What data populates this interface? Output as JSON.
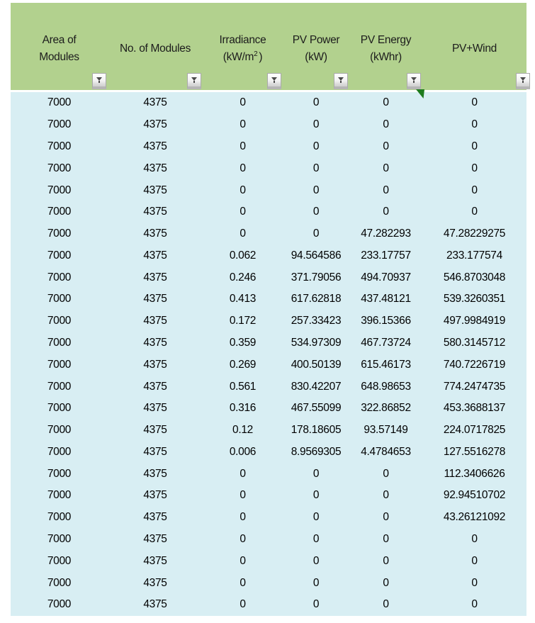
{
  "app": {
    "type": "spreadsheet-table",
    "header_bg": "#B2D18E",
    "data_bg": "#D8EEF3",
    "flag_color": "#1E7B1E",
    "text_color": "#000000",
    "filter_icon": "funnel"
  },
  "table": {
    "columns": [
      {
        "name": "area-of-modules",
        "line1": "Area of",
        "line2": "Modules"
      },
      {
        "name": "no-of-modules",
        "line1": "No. of Modules",
        "line2": ""
      },
      {
        "name": "irradiance",
        "line1": "Irradiance",
        "line2_pre": "(kW/m",
        "line2_sup": "2",
        "line2_post": ")"
      },
      {
        "name": "pv-power",
        "line1": "PV Power",
        "line2": "(kW)"
      },
      {
        "name": "pv-energy",
        "line1": "PV Energy",
        "line2": "(kWhr)"
      },
      {
        "name": "pv-plus-wind",
        "line1": "PV+Wind",
        "line2": ""
      }
    ],
    "rows": [
      [
        "7000",
        "4375",
        "0",
        "0",
        "0",
        "0"
      ],
      [
        "7000",
        "4375",
        "0",
        "0",
        "0",
        "0"
      ],
      [
        "7000",
        "4375",
        "0",
        "0",
        "0",
        "0"
      ],
      [
        "7000",
        "4375",
        "0",
        "0",
        "0",
        "0"
      ],
      [
        "7000",
        "4375",
        "0",
        "0",
        "0",
        "0"
      ],
      [
        "7000",
        "4375",
        "0",
        "0",
        "0",
        "0"
      ],
      [
        "7000",
        "4375",
        "0",
        "0",
        "47.282293",
        "47.28229275"
      ],
      [
        "7000",
        "4375",
        "0.062",
        "94.564586",
        "233.17757",
        "233.177574"
      ],
      [
        "7000",
        "4375",
        "0.246",
        "371.79056",
        "494.70937",
        "546.8703048"
      ],
      [
        "7000",
        "4375",
        "0.413",
        "617.62818",
        "437.48121",
        "539.3260351"
      ],
      [
        "7000",
        "4375",
        "0.172",
        "257.33423",
        "396.15366",
        "497.9984919"
      ],
      [
        "7000",
        "4375",
        "0.359",
        "534.97309",
        "467.73724",
        "580.3145712"
      ],
      [
        "7000",
        "4375",
        "0.269",
        "400.50139",
        "615.46173",
        "740.7226719"
      ],
      [
        "7000",
        "4375",
        "0.561",
        "830.42207",
        "648.98653",
        "774.2474735"
      ],
      [
        "7000",
        "4375",
        "0.316",
        "467.55099",
        "322.86852",
        "453.3688137"
      ],
      [
        "7000",
        "4375",
        "0.12",
        "178.18605",
        "93.57149",
        "224.0717825"
      ],
      [
        "7000",
        "4375",
        "0.006",
        "8.9569305",
        "4.4784653",
        "127.5516278"
      ],
      [
        "7000",
        "4375",
        "0",
        "0",
        "0",
        "112.3406626"
      ],
      [
        "7000",
        "4375",
        "0",
        "0",
        "0",
        "92.94510702"
      ],
      [
        "7000",
        "4375",
        "0",
        "0",
        "0",
        "43.26121092"
      ],
      [
        "7000",
        "4375",
        "0",
        "0",
        "0",
        "0"
      ],
      [
        "7000",
        "4375",
        "0",
        "0",
        "0",
        "0"
      ],
      [
        "7000",
        "4375",
        "0",
        "0",
        "0",
        "0"
      ],
      [
        "7000",
        "4375",
        "0",
        "0",
        "0",
        "0"
      ]
    ]
  }
}
